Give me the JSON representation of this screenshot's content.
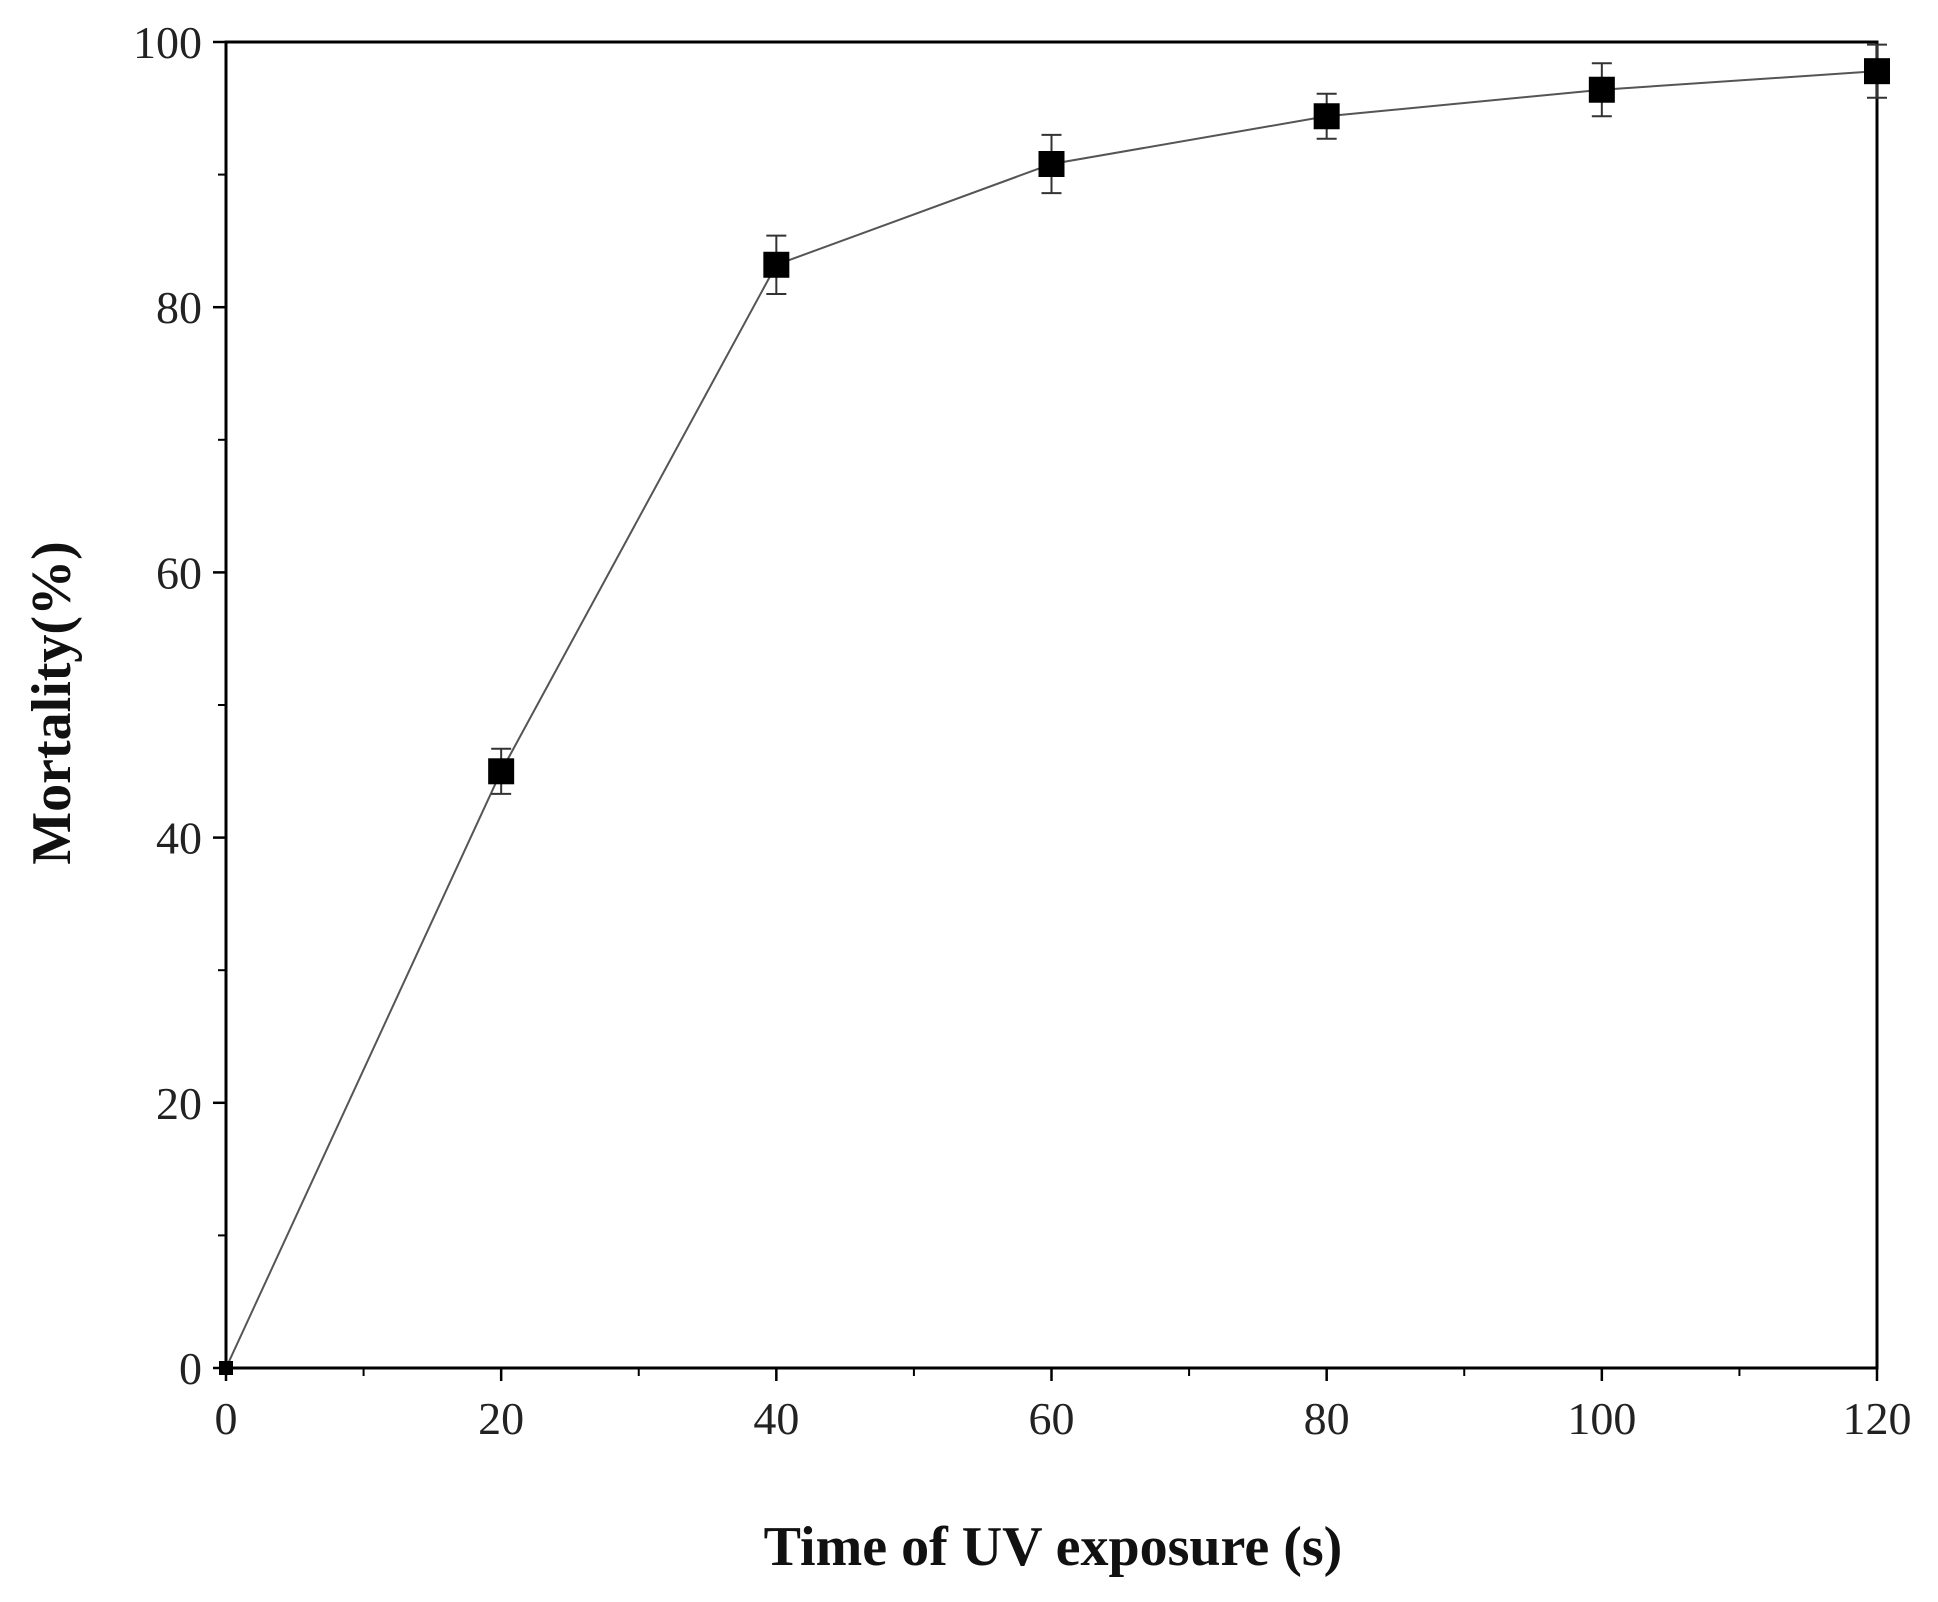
{
  "chart_data": {
    "type": "line",
    "title": "",
    "xlabel": "Time of UV exposure (s)",
    "ylabel": "Mortality(%)",
    "xlim": [
      0,
      120
    ],
    "ylim": [
      0,
      100
    ],
    "x_ticks": [
      0,
      20,
      40,
      60,
      80,
      100,
      120
    ],
    "y_ticks": [
      0,
      20,
      40,
      60,
      80,
      100
    ],
    "x_minor_step": 10,
    "y_minor_step": 10,
    "grid": false,
    "legend": "none",
    "marker": "square",
    "colors": {
      "line": "#555555",
      "marker": "#000000",
      "axis": "#000000"
    },
    "series": [
      {
        "x": [
          0,
          20,
          40,
          60,
          80,
          100,
          120
        ],
        "y": [
          0,
          45.0,
          83.2,
          90.8,
          94.4,
          96.4,
          97.8
        ],
        "error": [
          0,
          1.7,
          2.2,
          2.2,
          1.7,
          2.0,
          2.0
        ]
      }
    ]
  }
}
